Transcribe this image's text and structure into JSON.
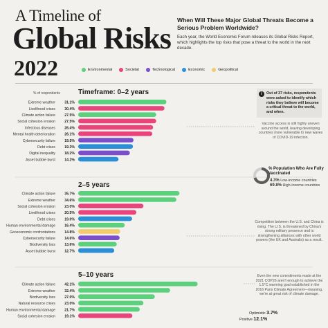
{
  "header": {
    "title_top": "A Timeline of",
    "title_main": "Global Risks",
    "title_year": "2022",
    "question": "When Will These Major Global Threats Become a Serious Problem Worldwide?",
    "intro": "Each year, the World Economic Forum releases its Global Risks Report, which highlights the top risks that pose a threat to the world in the next decade."
  },
  "legend": [
    {
      "label": "Environmental",
      "color": "#5cd17d"
    },
    {
      "label": "Societal",
      "color": "#e8457d"
    },
    {
      "label": "Technological",
      "color": "#7b4fc9"
    },
    {
      "label": "Economic",
      "color": "#2a8fd6"
    },
    {
      "label": "Geopolitical",
      "color": "#f0cc6a"
    }
  ],
  "column_note": "% of respondents",
  "side_box_text": "Out of 37 risks, respondents were asked to identify which risks they believe will become a critical threat to the world, and when.",
  "annotations": {
    "vaccine": "Vaccine access is still highly uneven around the world, leaving developing countries more vulnerable to new waves of COVID-19 infection.",
    "geo": "Competition between the U.S. and China is rising. The U.S. is threatened by China's strong military presence and is strengthening alliances with other world powers (the UK and Australia) as a result.",
    "climate": "Even the new commitments made at the 2021 COP26 aren't enough to achieve the 1.5°C warming goal established in the 2016 Paris Climate Agreement—meaning, we're at great risk of climate damage."
  },
  "vaccinated": {
    "title": "% Population Who Are Fully Vaccinated",
    "low_value": "4.3%",
    "low_label": "Low-income countries",
    "high_value": "69.8%",
    "high_label": "High-income countries"
  },
  "outlook": {
    "optimistic_label": "Optimistic",
    "optimistic_value": "3.7%",
    "positive_label": "Positive",
    "positive_value": "12.1%"
  },
  "colors": {
    "Environmental": "#5cd17d",
    "Societal": "#e8457d",
    "Technological": "#7b4fc9",
    "Economic": "#2a8fd6",
    "Geopolitical": "#f0cc6a"
  },
  "chart_data": [
    {
      "type": "bar",
      "title": "Timeframe: 0–2 years",
      "categories": [
        "Extreme weather",
        "Livelihood crises",
        "Climate action failure",
        "Social cohesion erosion",
        "Infectious diseases",
        "Mental health deterioration",
        "Cybersecurity failure",
        "Debt crises",
        "Digital inequality",
        "Asset bubble burst"
      ],
      "values": [
        31.1,
        30.4,
        27.5,
        27.5,
        26.4,
        26.1,
        19.5,
        19.3,
        18.2,
        14.2
      ],
      "value_labels": [
        "31.1%",
        "30.4%",
        "27.5%",
        "27.5%",
        "26.4%",
        "26.1%",
        "19.5%",
        "19.3%",
        "18.2%",
        "14.2%"
      ],
      "category_types": [
        "Environmental",
        "Societal",
        "Environmental",
        "Societal",
        "Societal",
        "Societal",
        "Technological",
        "Economic",
        "Technological",
        "Economic"
      ]
    },
    {
      "type": "bar",
      "title": "2–5 years",
      "categories": [
        "Climate action failure",
        "Extreme weather",
        "Social cohesion erosion",
        "Livelihood crises",
        "Debt crises",
        "Human environmental damage",
        "Geoeconomic confrontations",
        "Cybersecurity failure",
        "Biodiversity loss",
        "Asset bubble burst"
      ],
      "values": [
        35.7,
        34.6,
        23.0,
        20.5,
        19.0,
        16.4,
        14.8,
        14.6,
        13.6,
        12.7
      ],
      "value_labels": [
        "35.7%",
        "34.6%",
        "23.0%",
        "20.5%",
        "19.0%",
        "16.4%",
        "14.8%",
        "14.6%",
        "13.6%",
        "12.7%"
      ],
      "category_types": [
        "Environmental",
        "Environmental",
        "Societal",
        "Societal",
        "Economic",
        "Environmental",
        "Geopolitical",
        "Technological",
        "Environmental",
        "Economic"
      ]
    },
    {
      "type": "bar",
      "title": "5–10 years",
      "categories": [
        "Climate action failure",
        "Extreme weather",
        "Biodiversity loss",
        "Natural resource crises",
        "Human environmental damage",
        "Social cohesion erosion"
      ],
      "values": [
        42.1,
        32.4,
        27.0,
        23.0,
        21.7,
        19.1
      ],
      "value_labels": [
        "42.1%",
        "32.4%",
        "27.0%",
        "23.0%",
        "21.7%",
        "19.1%"
      ],
      "category_types": [
        "Environmental",
        "Environmental",
        "Environmental",
        "Environmental",
        "Environmental",
        "Societal"
      ]
    }
  ]
}
